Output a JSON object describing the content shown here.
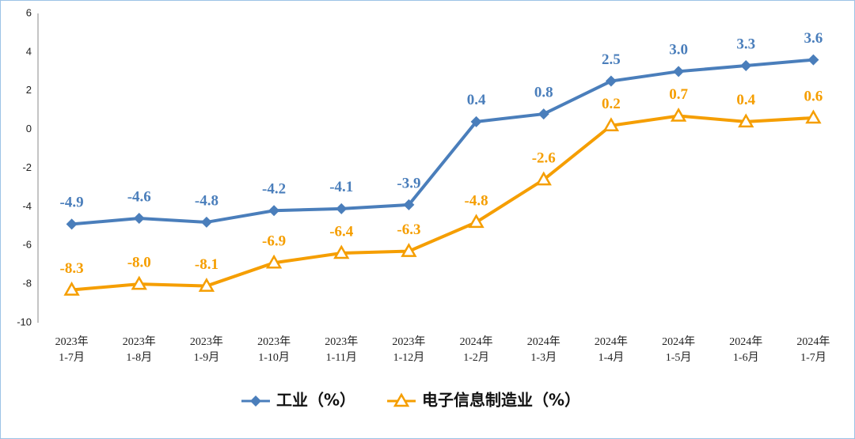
{
  "chart_data": {
    "type": "line",
    "categories": [
      "2023年\n1-7月",
      "2023年\n1-8月",
      "2023年\n1-9月",
      "2023年\n1-10月",
      "2023年\n1-11月",
      "2023年\n1-12月",
      "2024年\n1-2月",
      "2024年\n1-3月",
      "2024年\n1-4月",
      "2024年\n1-5月",
      "2024年\n1-6月",
      "2024年\n1-7月"
    ],
    "series": [
      {
        "name": "工业（%）",
        "color": "#4a7ebb",
        "marker": "diamond",
        "values": [
          -4.9,
          -4.6,
          -4.8,
          -4.2,
          -4.1,
          -3.9,
          0.4,
          0.8,
          2.5,
          3,
          3.3,
          3.6
        ],
        "value_labels": [
          "-4.9",
          "-4.6",
          "-4.8",
          "-4.2",
          "-4.1",
          "-3.9",
          "0.4",
          "0.8",
          "2.5",
          "3.0",
          "3.3",
          "3.6"
        ]
      },
      {
        "name": "电子信息制造业（%）",
        "color": "#f59e00",
        "marker": "triangle",
        "values": [
          -8.3,
          -8,
          -8.1,
          -6.9,
          -6.4,
          -6.3,
          -4.8,
          -2.6,
          0.2,
          0.7,
          0.4,
          0.6
        ],
        "value_labels": [
          "-8.3",
          "-8.0",
          "-8.1",
          "-6.9",
          "-6.4",
          "-6.3",
          "-4.8",
          "-2.6",
          "0.2",
          "0.7",
          "0.4",
          "0.6"
        ]
      }
    ],
    "ylim": [
      -10,
      6
    ],
    "yticks": [
      -10,
      -8,
      -6,
      -4,
      -2,
      0,
      2,
      4,
      6
    ],
    "grid": false,
    "legend": "bottom"
  }
}
